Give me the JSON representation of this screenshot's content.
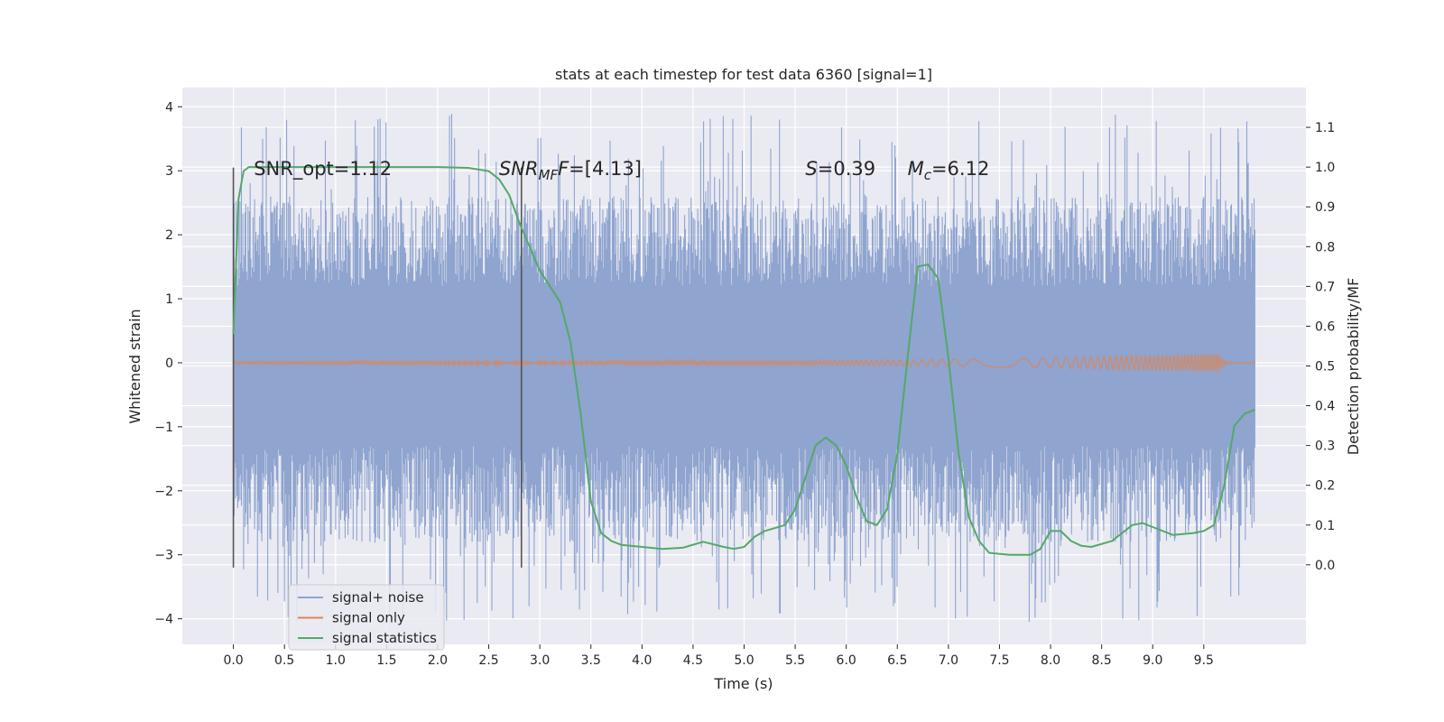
{
  "chart_data": {
    "type": "line",
    "title": "stats at each timestep for test data 6360 [signal=1]",
    "xlabel": "Time (s)",
    "ylabel_left": "Whitened strain",
    "ylabel_right": "Detection probability/MF",
    "xlim": [
      -0.5,
      10.5
    ],
    "ylim_left": [
      -4.4,
      4.3
    ],
    "ylim_right": [
      -0.2,
      1.2
    ],
    "x_ticks": [
      "0.0",
      "0.5",
      "1.0",
      "1.5",
      "2.0",
      "2.5",
      "3.0",
      "3.5",
      "4.0",
      "4.5",
      "5.0",
      "5.5",
      "6.0",
      "6.5",
      "7.0",
      "7.5",
      "8.0",
      "8.5",
      "9.0",
      "9.5"
    ],
    "y_ticks_left": [
      "4",
      "3",
      "2",
      "1",
      "0",
      "−1",
      "−2",
      "−3",
      "−4"
    ],
    "y_ticks_right": [
      "1.1",
      "1.0",
      "0.9",
      "0.8",
      "0.7",
      "0.6",
      "0.5",
      "0.4",
      "0.3",
      "0.2",
      "0.1",
      "0.0"
    ],
    "grid": true,
    "legend_position": "lower-left",
    "annotations": [
      {
        "x": 0.2,
        "y": 3.0,
        "text": "SNR_opt=1.12",
        "style": "normal"
      },
      {
        "x": 2.6,
        "y": 3.0,
        "prefix_italic": "SNR",
        "sub": "MF",
        "suffix_italic": "F",
        "rest": "=[4.13]",
        "style": "math"
      },
      {
        "x": 5.6,
        "y": 3.0,
        "italic": "S",
        "rest": "=0.39",
        "style": "math"
      },
      {
        "x": 6.6,
        "y": 3.0,
        "italic": "M",
        "sub": "c",
        "rest": "=6.12",
        "style": "math"
      }
    ],
    "vlines": [
      {
        "x": 0.0,
        "ymin": -3.2,
        "ymax": 3.05
      },
      {
        "x": 2.82,
        "ymin": -3.2,
        "ymax": 3.05
      }
    ],
    "series": [
      {
        "name": "signal+ noise",
        "color": "#8fa4cf",
        "axis": "left",
        "x_range": [
          0.0,
          10.0
        ],
        "envelope": {
          "core_min": -1.3,
          "core_max": 1.2,
          "typical_max": 2.6,
          "typical_min": -2.8,
          "extreme_max": 3.9,
          "extreme_min": -4.05
        }
      },
      {
        "name": "signal only",
        "color": "#dd8452",
        "axis": "left",
        "x_range": [
          0.0,
          10.0
        ],
        "amplitude_end": 0.15,
        "peak_time": 9.65
      },
      {
        "name": "signal statistics",
        "color": "#55a868",
        "axis": "right",
        "x": [
          0.0,
          0.05,
          0.1,
          0.15,
          0.2,
          0.5,
          1.0,
          1.5,
          2.0,
          2.3,
          2.5,
          2.6,
          2.7,
          2.8,
          2.9,
          3.0,
          3.1,
          3.2,
          3.3,
          3.4,
          3.5,
          3.6,
          3.7,
          3.8,
          4.0,
          4.2,
          4.4,
          4.6,
          4.8,
          4.9,
          5.0,
          5.1,
          5.2,
          5.4,
          5.5,
          5.6,
          5.7,
          5.8,
          5.9,
          6.0,
          6.1,
          6.2,
          6.3,
          6.4,
          6.5,
          6.6,
          6.7,
          6.8,
          6.9,
          7.0,
          7.1,
          7.2,
          7.3,
          7.4,
          7.6,
          7.8,
          7.9,
          8.0,
          8.1,
          8.2,
          8.3,
          8.4,
          8.6,
          8.8,
          8.9,
          9.0,
          9.2,
          9.4,
          9.5,
          9.6,
          9.7,
          9.8,
          9.9,
          10.0
        ],
        "y": [
          0.58,
          0.92,
          0.99,
          1.0,
          1.0,
          1.0,
          1.0,
          1.0,
          1.0,
          0.998,
          0.99,
          0.97,
          0.93,
          0.86,
          0.8,
          0.74,
          0.7,
          0.66,
          0.56,
          0.38,
          0.16,
          0.08,
          0.06,
          0.05,
          0.045,
          0.04,
          0.043,
          0.058,
          0.045,
          0.04,
          0.045,
          0.07,
          0.085,
          0.1,
          0.14,
          0.22,
          0.3,
          0.32,
          0.3,
          0.25,
          0.17,
          0.11,
          0.1,
          0.14,
          0.28,
          0.52,
          0.75,
          0.755,
          0.72,
          0.52,
          0.28,
          0.12,
          0.06,
          0.03,
          0.025,
          0.025,
          0.04,
          0.085,
          0.085,
          0.06,
          0.048,
          0.045,
          0.06,
          0.1,
          0.105,
          0.095,
          0.075,
          0.08,
          0.085,
          0.1,
          0.2,
          0.35,
          0.38,
          0.39
        ]
      }
    ]
  }
}
